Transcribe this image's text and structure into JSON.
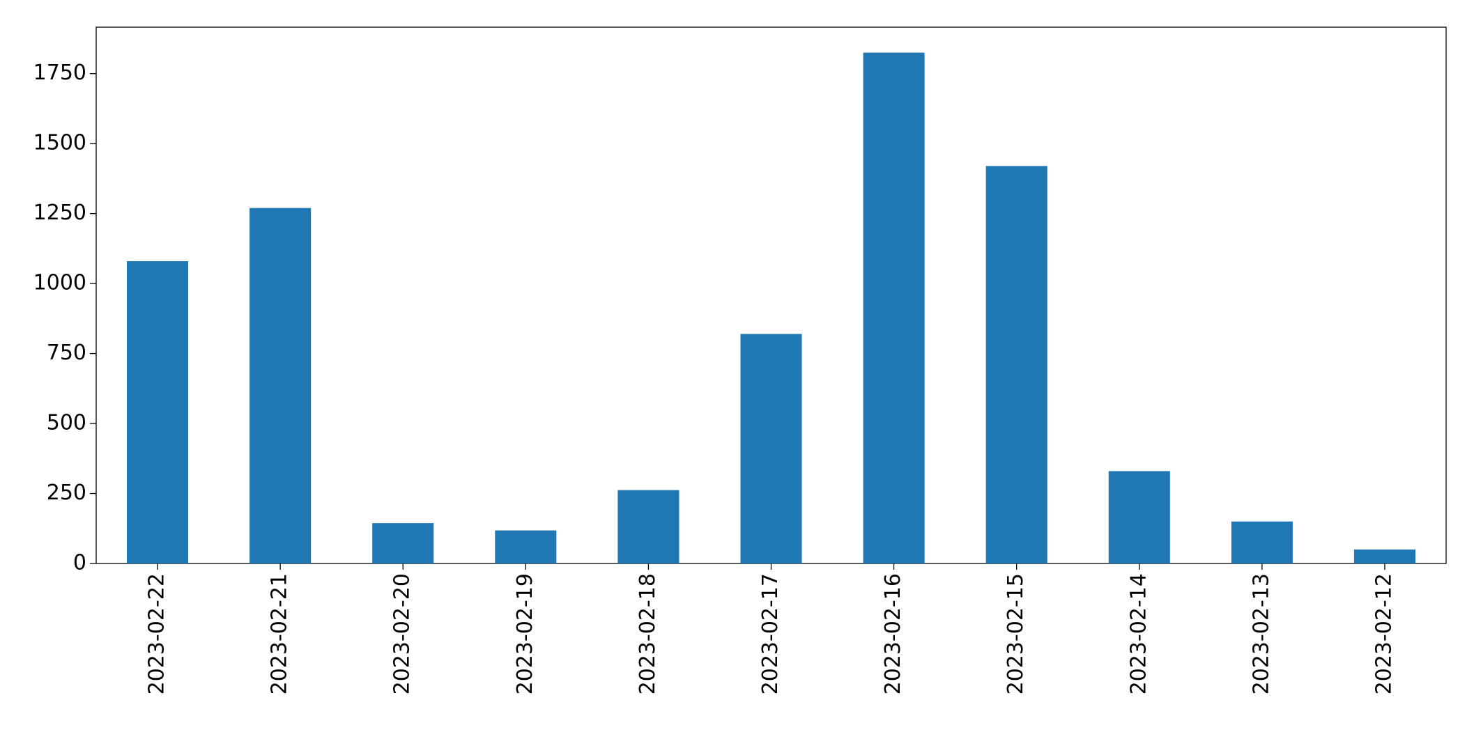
{
  "chart_data": {
    "type": "bar",
    "categories": [
      "2023-02-22",
      "2023-02-21",
      "2023-02-20",
      "2023-02-19",
      "2023-02-18",
      "2023-02-17",
      "2023-02-16",
      "2023-02-15",
      "2023-02-14",
      "2023-02-13",
      "2023-02-12"
    ],
    "values": [
      1080,
      1270,
      144,
      118,
      262,
      820,
      1825,
      1420,
      330,
      150,
      50
    ],
    "color": "#1f77b4",
    "ylim": [
      0,
      1916
    ],
    "yticks": [
      0,
      250,
      500,
      750,
      1000,
      1250,
      1500,
      1750
    ],
    "grid": false
  }
}
